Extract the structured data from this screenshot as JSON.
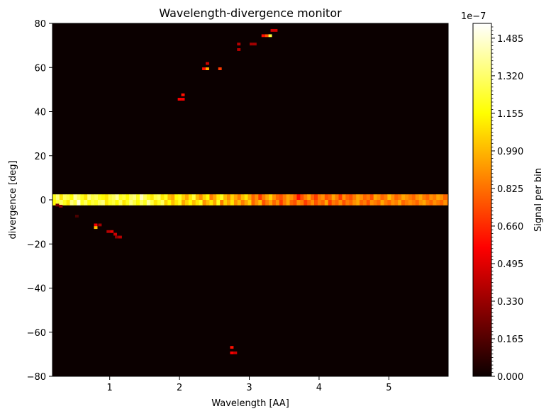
{
  "chart_data": {
    "type": "heatmap",
    "title": "Wavelength-divergence monitor",
    "xlabel": "Wavelength [AA]",
    "ylabel": "divergence [deg]",
    "xlim": [
      0.18,
      5.85
    ],
    "ylim": [
      -80,
      80
    ],
    "x_ticks": [
      1,
      2,
      3,
      4,
      5
    ],
    "x_tick_labels": [
      "1",
      "2",
      "3",
      "4",
      "5"
    ],
    "y_ticks": [
      -80,
      -60,
      -40,
      -20,
      0,
      20,
      40,
      60,
      80
    ],
    "y_tick_labels": [
      "−80",
      "−60",
      "−40",
      "−20",
      "0",
      "20",
      "40",
      "60",
      "80"
    ],
    "bin_width_x": 0.05,
    "bin_width_y": 1.25,
    "background_value": 0.0,
    "colormap": "hot",
    "colorbar": {
      "label": "Signal per bin",
      "scale_label": "1e−7",
      "vmin": 0.0,
      "vmax": 1.55,
      "ticks": [
        0.0,
        0.165,
        0.33,
        0.495,
        0.66,
        0.825,
        0.99,
        1.155,
        1.32,
        1.485
      ],
      "tick_labels": [
        "0.000",
        "0.165",
        "0.330",
        "0.495",
        "0.660",
        "0.825",
        "0.990",
        "1.155",
        "1.320",
        "1.485"
      ]
    },
    "band": {
      "y_min": -2.5,
      "y_max": 2.5,
      "x_start": 0.18,
      "x_end": 5.85,
      "values_upper": [
        1.2,
        1.35,
        1.1,
        1.3,
        1.25,
        1.15,
        1.4,
        1.3,
        1.2,
        1.1,
        1.35,
        1.25,
        1.3,
        1.2,
        1.15,
        1.1,
        1.25,
        1.3,
        1.4,
        1.2,
        1.25,
        1.15,
        1.3,
        1.35,
        1.2,
        1.45,
        1.3,
        1.2,
        1.1,
        1.25,
        1.3,
        1.1,
        1.2,
        1.0,
        0.95,
        1.15,
        1.2,
        1.05,
        0.95,
        1.1,
        1.25,
        1.0,
        0.9,
        1.05,
        1.15,
        0.85,
        0.95,
        1.1,
        1.2,
        1.0,
        0.9,
        1.05,
        0.95,
        0.85,
        1.0,
        1.1,
        0.95,
        0.8,
        0.9,
        0.7,
        0.85,
        0.95,
        1.05,
        0.9,
        0.8,
        0.75,
        0.85,
        0.95,
        0.9,
        0.8,
        0.6,
        0.75,
        0.85,
        0.95,
        0.8,
        0.7,
        0.85,
        0.9,
        0.75,
        0.8,
        0.95,
        0.85,
        0.7,
        0.9,
        0.8,
        0.75,
        0.85,
        0.95,
        0.9,
        0.8,
        0.85,
        0.75,
        0.95,
        0.9,
        0.8,
        0.85,
        1.0,
        0.9,
        0.8,
        0.85,
        0.95,
        0.9,
        0.85,
        0.8,
        0.9,
        0.95,
        0.85,
        0.8,
        0.9,
        0.85,
        0.95,
        0.9,
        0.8,
        0.85
      ],
      "values_lower": [
        1.15,
        1.25,
        1.3,
        1.2,
        1.1,
        1.35,
        1.25,
        1.5,
        1.2,
        1.3,
        1.15,
        1.25,
        1.2,
        1.3,
        1.35,
        1.1,
        1.2,
        1.25,
        1.15,
        1.3,
        1.1,
        1.2,
        1.35,
        1.25,
        1.15,
        1.3,
        1.2,
        1.4,
        1.25,
        1.1,
        1.2,
        1.3,
        1.05,
        1.15,
        1.0,
        1.1,
        1.2,
        0.95,
        1.05,
        1.15,
        1.0,
        1.1,
        1.2,
        0.9,
        1.0,
        1.1,
        0.95,
        1.2,
        0.85,
        1.05,
        0.95,
        1.1,
        0.9,
        1.0,
        0.85,
        0.95,
        1.05,
        0.8,
        0.9,
        1.0,
        0.75,
        0.85,
        0.95,
        0.8,
        0.9,
        0.7,
        0.85,
        0.95,
        0.8,
        0.75,
        0.9,
        0.85,
        0.7,
        0.8,
        0.9,
        0.75,
        0.85,
        0.8,
        0.95,
        0.7,
        0.85,
        0.8,
        0.9,
        0.75,
        0.85,
        0.8,
        0.9,
        0.95,
        0.8,
        0.85,
        0.75,
        0.9,
        0.85,
        0.8,
        0.95,
        0.85,
        0.8,
        0.9,
        0.85,
        0.95,
        0.8,
        0.85,
        0.9,
        0.85,
        0.8,
        0.9,
        0.95,
        0.85,
        0.8,
        0.9,
        0.85,
        0.8,
        0.9,
        0.85
      ]
    },
    "points": [
      {
        "x": 0.25,
        "y": -3.0,
        "value": 0.25
      },
      {
        "x": 0.3,
        "y": -3.5,
        "value": 0.3
      },
      {
        "x": 0.53,
        "y": -8.0,
        "value": 0.15
      },
      {
        "x": 0.8,
        "y": -12.0,
        "value": 0.55
      },
      {
        "x": 0.8,
        "y": -13.2,
        "value": 1.0
      },
      {
        "x": 0.86,
        "y": -12.0,
        "value": 0.35
      },
      {
        "x": 0.98,
        "y": -15.0,
        "value": 0.4
      },
      {
        "x": 1.03,
        "y": -15.0,
        "value": 0.5
      },
      {
        "x": 1.08,
        "y": -16.2,
        "value": 0.45
      },
      {
        "x": 1.1,
        "y": -17.5,
        "value": 0.3
      },
      {
        "x": 1.15,
        "y": -17.5,
        "value": 0.4
      },
      {
        "x": 2.0,
        "y": 45.0,
        "value": 0.55
      },
      {
        "x": 2.05,
        "y": 45.0,
        "value": 0.55
      },
      {
        "x": 2.05,
        "y": 47.0,
        "value": 0.6
      },
      {
        "x": 2.35,
        "y": 58.8,
        "value": 0.6
      },
      {
        "x": 2.4,
        "y": 58.8,
        "value": 0.95
      },
      {
        "x": 2.4,
        "y": 61.2,
        "value": 0.45
      },
      {
        "x": 2.58,
        "y": 58.8,
        "value": 0.7
      },
      {
        "x": 2.85,
        "y": 67.5,
        "value": 0.4
      },
      {
        "x": 2.85,
        "y": 70.0,
        "value": 0.4
      },
      {
        "x": 3.03,
        "y": 70.0,
        "value": 0.35
      },
      {
        "x": 3.08,
        "y": 70.0,
        "value": 0.35
      },
      {
        "x": 3.2,
        "y": 73.8,
        "value": 0.6
      },
      {
        "x": 3.25,
        "y": 73.8,
        "value": 0.75
      },
      {
        "x": 3.3,
        "y": 73.8,
        "value": 1.25
      },
      {
        "x": 3.33,
        "y": 76.2,
        "value": 0.45
      },
      {
        "x": 3.38,
        "y": 76.2,
        "value": 0.45
      },
      {
        "x": 2.75,
        "y": -67.5,
        "value": 0.6
      },
      {
        "x": 2.75,
        "y": -70.0,
        "value": 0.55
      },
      {
        "x": 2.8,
        "y": -70.0,
        "value": 0.45
      }
    ]
  }
}
